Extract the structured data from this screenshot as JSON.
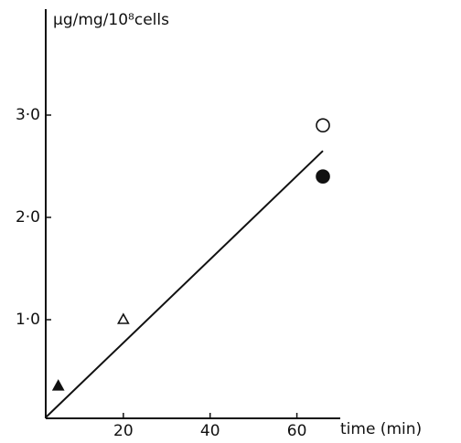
{
  "chart_data": {
    "type": "scatter",
    "xlabel": "time (min)",
    "ylabel": "μg/mg/10⁸cells",
    "xlim": [
      0,
      70
    ],
    "ylim": [
      0,
      4
    ],
    "xticks": [
      20,
      40,
      60
    ],
    "yticks": [
      {
        "value": 1,
        "label": "1·0"
      },
      {
        "value": 2,
        "label": "2·0"
      },
      {
        "value": 3,
        "label": "3·0"
      }
    ],
    "color": "#111111",
    "series": [
      {
        "marker": "triangle",
        "filled": true,
        "x": [
          5
        ],
        "values": [
          0.35
        ]
      },
      {
        "marker": "triangle",
        "filled": false,
        "x": [
          20
        ],
        "values": [
          1.0
        ]
      },
      {
        "marker": "circle",
        "filled": false,
        "x": [
          66
        ],
        "values": [
          2.9
        ]
      },
      {
        "marker": "circle",
        "filled": true,
        "x": [
          66
        ],
        "values": [
          2.4
        ]
      }
    ],
    "fit_line": {
      "x": [
        2,
        66
      ],
      "values": [
        0.04,
        2.65
      ]
    }
  }
}
